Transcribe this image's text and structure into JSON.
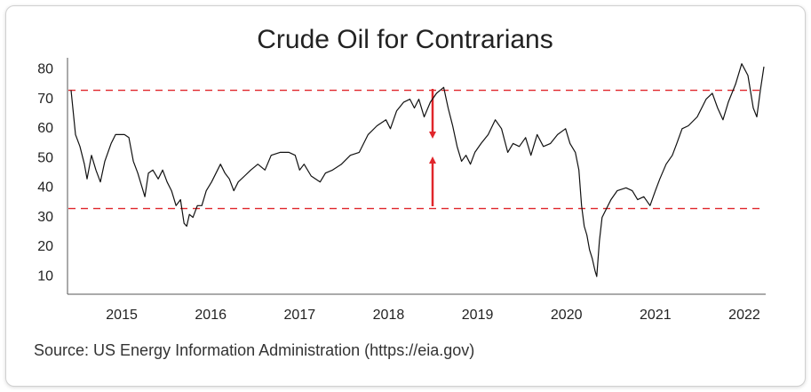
{
  "chart_data": {
    "type": "line",
    "title": "Crude Oil for Contrarians",
    "source": "Source: US Energy Information Administration (https://eia.gov)",
    "color": "#111111",
    "x": [
      2014.93,
      2014.98,
      2015.03,
      2015.08,
      2015.11,
      2015.16,
      2015.21,
      2015.26,
      2015.31,
      2015.38,
      2015.43,
      2015.53,
      2015.58,
      2015.63,
      2015.68,
      2015.73,
      2015.76,
      2015.8,
      2015.85,
      2015.91,
      2015.96,
      2016.01,
      2016.06,
      2016.11,
      2016.16,
      2016.2,
      2016.23,
      2016.26,
      2016.3,
      2016.35,
      2016.4,
      2016.45,
      2016.51,
      2016.56,
      2016.61,
      2016.66,
      2016.71,
      2016.76,
      2016.81,
      2016.88,
      2016.95,
      2017.03,
      2017.11,
      2017.18,
      2017.28,
      2017.38,
      2017.45,
      2017.5,
      2017.55,
      2017.63,
      2017.73,
      2017.79,
      2017.87,
      2017.97,
      2018.07,
      2018.17,
      2018.27,
      2018.37,
      2018.47,
      2018.52,
      2018.59,
      2018.67,
      2018.74,
      2018.79,
      2018.84,
      2018.9,
      2018.97,
      2019.04,
      2019.12,
      2019.17,
      2019.22,
      2019.27,
      2019.32,
      2019.37,
      2019.42,
      2019.47,
      2019.54,
      2019.62,
      2019.7,
      2019.77,
      2019.84,
      2019.9,
      2019.97,
      2020.04,
      2020.1,
      2020.17,
      2020.24,
      2020.32,
      2020.4,
      2020.49,
      2020.54,
      2020.6,
      2020.64,
      2020.67,
      2020.7,
      2020.73,
      2020.76,
      2020.79,
      2020.82,
      2020.84,
      2020.87,
      2020.9,
      2020.95,
      2021.0,
      2021.07,
      2021.17,
      2021.24,
      2021.3,
      2021.37,
      2021.44,
      2021.5,
      2021.55,
      2021.62,
      2021.69,
      2021.74,
      2021.8,
      2021.87,
      2021.97,
      2022.07,
      2022.14,
      2022.2,
      2022.26,
      2022.32,
      2022.4,
      2022.47,
      2022.54,
      2022.6,
      2022.64,
      2022.68,
      2022.72
    ],
    "values": [
      73,
      58,
      54,
      48,
      43,
      51,
      46,
      42,
      49,
      55,
      58,
      58,
      57,
      49,
      45,
      40,
      37,
      45,
      46,
      43,
      46,
      42,
      39,
      34,
      36,
      28,
      27,
      31,
      30,
      34,
      34,
      39,
      42,
      45,
      48,
      45,
      43,
      39,
      42,
      44,
      46,
      48,
      46,
      51,
      52,
      52,
      51,
      46,
      48,
      44,
      42,
      45,
      46,
      48,
      51,
      52,
      58,
      61,
      63,
      60,
      66,
      69,
      70,
      67,
      70,
      64,
      69,
      72,
      74,
      67,
      61,
      54,
      49,
      51,
      48,
      52,
      55,
      58,
      63,
      60,
      52,
      55,
      54,
      57,
      51,
      58,
      54,
      55,
      58,
      60,
      55,
      52,
      46,
      34,
      27,
      24,
      19,
      16,
      12,
      10,
      22,
      30,
      33,
      36,
      39,
      40,
      39,
      36,
      37,
      34,
      39,
      43,
      48,
      51,
      55,
      60,
      61,
      64,
      70,
      72,
      67,
      63,
      69,
      75,
      82,
      78,
      67,
      64,
      73,
      81
    ],
    "xlim": [
      2014.93,
      2022.72
    ],
    "ylim": [
      4,
      84
    ],
    "yticks": [
      10,
      20,
      30,
      40,
      50,
      60,
      70,
      80
    ],
    "xticks": [
      {
        "value": 2015.5,
        "label": "2015"
      },
      {
        "value": 2016.5,
        "label": "2016"
      },
      {
        "value": 2017.5,
        "label": "2017"
      },
      {
        "value": 2018.5,
        "label": "2018"
      },
      {
        "value": 2019.5,
        "label": "2019"
      },
      {
        "value": 2020.5,
        "label": "2020"
      },
      {
        "value": 2021.5,
        "label": "2021"
      },
      {
        "value": 2022.5,
        "label": "2022"
      }
    ],
    "reference_lines": [
      {
        "value": 73,
        "color": "#e0262b"
      },
      {
        "value": 33,
        "color": "#e0262b"
      }
    ]
  }
}
